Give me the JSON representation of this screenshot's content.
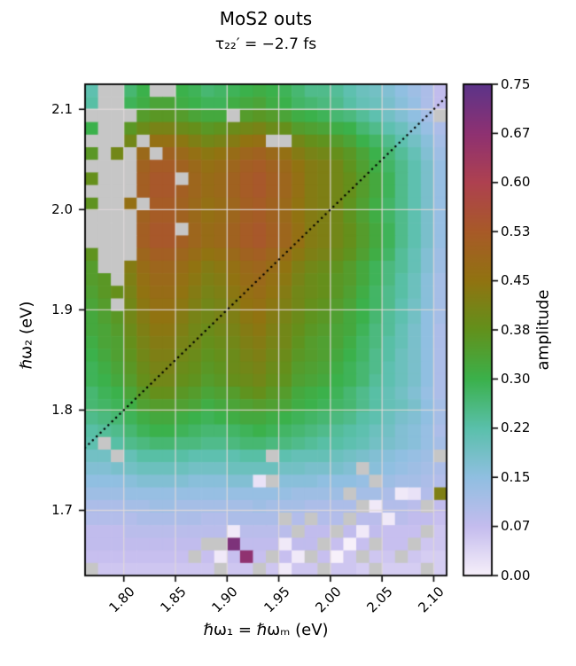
{
  "title": {
    "text": "MoS2 outs",
    "subtitle": "τ₂₂′ = −2.7 fs"
  },
  "axes": {
    "xlabel": "ℏω₁ = ℏωₘ (eV)",
    "ylabel": "ℏω₂ (eV)",
    "xlim": [
      1.7625,
      2.1125
    ],
    "ylim": [
      1.635,
      2.125
    ],
    "x_tick_values": [
      1.8,
      1.85,
      1.9,
      1.95,
      2.0,
      2.05,
      2.1
    ],
    "x_tick_labels": [
      "1.80",
      "1.85",
      "1.90",
      "1.95",
      "2.00",
      "2.05",
      "2.10"
    ],
    "y_tick_values": [
      2.1,
      2.0,
      1.9,
      1.8,
      1.7
    ],
    "y_tick_labels": [
      "2.1",
      "2.0",
      "1.9",
      "1.8",
      "1.7"
    ],
    "grid": true,
    "grid_color": "rgba(225,217,218,0.85)",
    "frame_color": "#000000",
    "diagonal_line": {
      "style": "dotted",
      "color": "#000000",
      "meaning": "ω2 = ω1 diagonal from lower-left to upper-right"
    }
  },
  "colorbar": {
    "label": "amplitude",
    "vmin": 0.0,
    "vmax": 0.75,
    "tick_values": [
      0,
      0.075,
      0.15,
      0.225,
      0.3,
      0.375,
      0.45,
      0.525,
      0.6,
      0.675,
      0.75
    ],
    "tick_labels": [
      "0.00",
      "0.07",
      "0.15",
      "0.22",
      "0.30",
      "0.38",
      "0.45",
      "0.53",
      "0.60",
      "0.67",
      "0.75"
    ],
    "colormap_stops": [
      {
        "value": 0.0,
        "color": "#f7f0fa"
      },
      {
        "value": 0.075,
        "color": "#c4bcee"
      },
      {
        "value": 0.15,
        "color": "#90bfe1"
      },
      {
        "value": 0.225,
        "color": "#5ac0ab"
      },
      {
        "value": 0.3,
        "color": "#3bb14b"
      },
      {
        "value": 0.375,
        "color": "#62911c"
      },
      {
        "value": 0.45,
        "color": "#917311"
      },
      {
        "value": 0.525,
        "color": "#a85a28"
      },
      {
        "value": 0.6,
        "color": "#ae4150"
      },
      {
        "value": 0.675,
        "color": "#8e3172"
      },
      {
        "value": 0.75,
        "color": "#5c3489"
      }
    ],
    "nan_color": "#c6c6c6"
  },
  "chart_data": {
    "type": "heatmap",
    "title": "MoS2 outs",
    "subtitle": "τ₂₂′ = −2.7 fs",
    "xlabel": "ℏω₁ = ℏωₘ (eV)",
    "ylabel": "ℏω₂ (eV)",
    "zlabel": "amplitude",
    "n_cols": 28,
    "n_rows": 39,
    "x_start": 1.7625,
    "x_step": 0.0125,
    "y_start": 2.125,
    "y_step": -0.0125,
    "row_order": "top-to-bottom",
    "values_encoding": "amplitude × 100; N = missing (masked, shown grey)",
    "nan_token": "N",
    "rows": [
      "22,N,N,27,30,N,N,30,29,27,28,29,30,31,30,29,27,25,25,24,22,20,19,17,15,13,11,8",
      "23,N,N,29,31,33,33,31,30,29,29,31,32,33,31,30,28,27,26,25,23,21,20,18,16,14,11,8",
      "N,N,N,N,35,36,36,35,33,32,32,N,35,36,35,33,31,30,29,27,26,24,22,19,17,15,12,N",
      "30,N,N,36,39,41,41,39,38,36,37,39,40,41,39,38,35,34,33,31,30,27,25,22,20,17,14,11",
      "N,N,N,40,N,46,46,44,42,40,41,43,45,46,N,N,40,38,37,35,33,30,28,25,22,19,16,12",
      "36,N,40,N,48,N,50,48,46,44,45,47,49,50,48,46,43,41,40,38,36,33,30,27,24,21,17,13",
      "N,N,N,N,50,52,52,50,48,46,47,49,51,52,50,48,45,43,42,40,37,34,31,28,25,22,18,14",
      "38,N,N,N,51,53,53,N,49,47,48,50,52,53,51,49,46,43,42,40,38,35,32,29,25,22,18,14",
      "N,N,N,N,51,53,53,51,49,47,48,50,52,53,51,49,46,43,42,40,38,35,32,29,25,22,18,14",
      "37,N,N,46,N,52,52,50,48,46,47,49,51,52,50,48,45,43,42,40,37,34,31,28,25,22,18,14",
      "N,N,N,N,50,52,52,50,48,46,47,49,51,52,50,48,45,43,42,40,37,34,31,28,25,22,18,14",
      "N,N,N,N,51,53,53,N,49,47,48,50,52,53,51,49,46,43,42,40,38,35,32,29,25,22,18,14",
      "N,N,N,N,51,53,53,51,49,47,48,50,52,53,51,49,46,43,42,40,38,35,32,29,25,22,18,14",
      "37,N,N,N,49,51,51,49,47,45,46,48,50,51,49,47,44,42,41,39,37,34,31,28,24,21,17,13",
      "35,N,N,43,47,49,49,47,45,43,44,46,48,49,47,45,42,40,39,37,35,32,29,26,24,21,17,13",
      "35,36,N,42,46,48,48,46,44,42,43,45,47,48,46,44,41,39,38,36,35,32,29,26,23,20,16,12",
      "34,36,38,41,45,47,47,45,43,41,42,44,46,47,45,43,40,39,38,36,34,31,28,25,23,20,16,12",
      "33,35,N,40,44,46,46,44,42,40,41,43,45,46,44,42,40,38,37,35,33,30,28,25,22,19,16,12",
      "32,34,36,40,43,45,45,43,41,40,41,42,44,45,43,41,39,37,36,34,32,30,27,24,22,19,15,12",
      "32,33,35,39,42,44,44,42,40,39,40,41,43,44,42,40,38,36,35,33,32,29,26,24,21,18,15,11",
      "31,33,34,38,41,43,43,41,40,38,39,40,42,43,41,40,37,35,34,33,31,28,26,23,21,18,15,11",
      "30,32,34,37,40,42,42,40,39,37,38,39,41,42,40,39,36,35,34,32,30,28,25,23,20,18,15,11",
      "29,31,33,36,39,41,41,39,38,36,37,39,40,41,39,38,35,34,33,31,29,27,25,22,20,18,15,11",
      "29,30,32,35,38,40,40,38,37,35,36,38,39,40,38,37,34,33,32,30,29,27,24,22,20,18,15,11",
      "27,29,30,33,36,38,38,36,35,33,34,35,37,38,36,35,32,31,30,29,27,25,23,21,19,17,14,11",
      "27,28,29,31,34,35,35,34,33,31,32,33,34,35,34,33,31,30,29,28,27,25,23,21,20,18,15,12",
      "25,26,27,29,31,32,32,31,30,29,30,31,32,32,31,30,29,28,27,26,25,23,22,20,18,17,15,12",
      "23,24,25,27,29,30,30,29,28,27,27,28,29,30,29,28,27,26,25,24,23,22,20,19,17,16,14,11",
      "22,N,23,25,26,27,27,26,26,25,25,26,27,27,26,26,25,24,23,23,22,21,19,18,17,16,14,12",
      "19,19,N,21,23,23,23,23,22,22,22,22,23,23,N,22,21,21,21,20,19,18,17,16,15,14,13,N",
      "17,17,18,19,20,20,20,20,19,19,19,20,20,20,20,19,19,18,18,18,17,N,16,15,14,13,12,11",
      "15,15,15,16,17,17,17,17,16,16,16,17,17,2,N,16,16,16,15,15,15,14,N,13,12,12,11,10",
      "13,13,13,14,14,14,14,14,14,14,14,14,14,14,14,14,13,13,13,13,N,12,12,11,1,2,10,42",
      "11,11,11,12,12,13,13,12,12,12,12,12,12,13,12,12,12,11,11,11,11,N,1,10,10,9,N,8",
      "10,10,10,10,11,11,11,11,11,10,10,11,11,11,11,N,10,N,10,10,N,9,9,1,9,8,8,7",
      "8,8,8,9,9,9,9,9,9,9,9,1,9,9,9,9,N,8,8,N,8,1,8,7,7,7,N,6",
      "8,8,8,8,8,8,8,8,8,N,N,70,8,8,8,1,8,8,N,7,0,7,N,7,7,N,6,6",
      "7,7,7,7,7,7,7,7,N,7,1,7,67,7,N,7,1,N,7,0,6,N,6,6,N,6,5,5",
      "N,6,6,6,6,6,6,6,6,6,N,6,6,N,6,1,6,6,N,6,6,5,N,5,5,5,N,5"
    ]
  }
}
